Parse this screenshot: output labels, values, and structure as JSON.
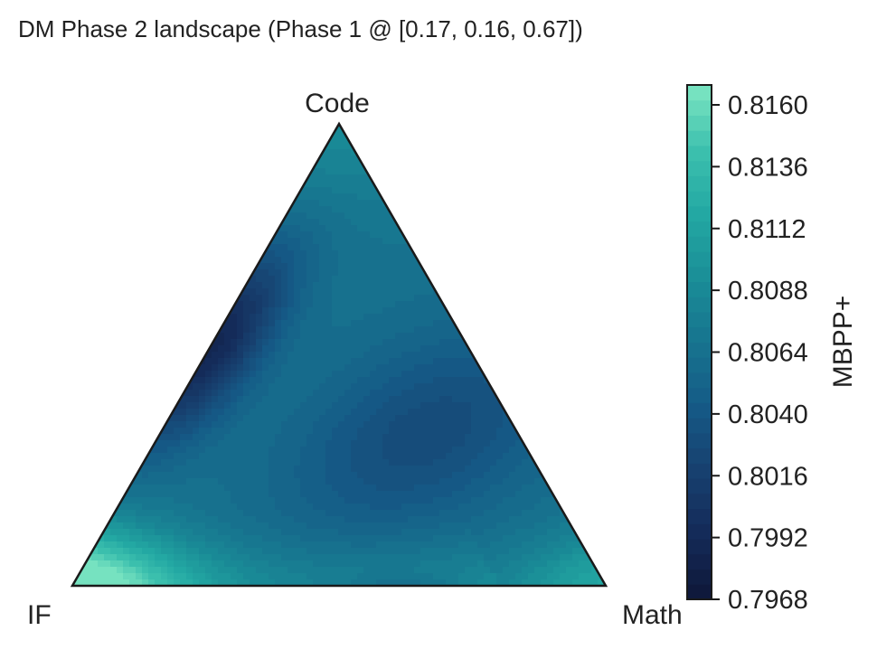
{
  "chart_data": {
    "type": "ternary-contour",
    "title": "DM Phase 2 landscape (Phase 1 @ [0.17, 0.16, 0.67])",
    "vertices": {
      "top": "Code",
      "left": "IF",
      "right": "Math"
    },
    "colorbar": {
      "label": "MBPP+",
      "min": 0.7968,
      "max": 0.8172,
      "ticks": [
        "0.8160",
        "0.8136",
        "0.8112",
        "0.8088",
        "0.8064",
        "0.8040",
        "0.8016",
        "0.7992",
        "0.7968"
      ],
      "colormap": [
        "#0e1738",
        "#142a58",
        "#17406f",
        "#155a86",
        "#17748f",
        "#1a8e97",
        "#23a8a3",
        "#3dc0ae",
        "#7ee6c2"
      ]
    },
    "features": [
      {
        "description_value": 0.8172,
        "at": "IF corner (bottom-left)"
      },
      {
        "description_value": 0.7968,
        "at": "left edge, upper-middle (Code ~0.5, IF ~0.5)"
      },
      {
        "description_value": 0.8025,
        "at": "interior basin toward Math side"
      },
      {
        "description_value": 0.8105,
        "at": "Math corner (bottom-right)"
      },
      {
        "description_value": 0.8088,
        "at": "Code apex"
      }
    ]
  }
}
